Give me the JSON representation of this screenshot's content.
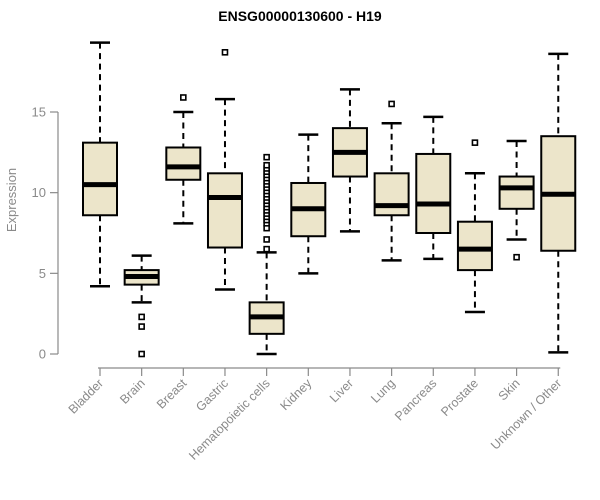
{
  "chart_data": {
    "type": "boxplot",
    "title": "ENSG00000130600 - H19",
    "ylabel": "Expression",
    "xlabel": "",
    "y_ticks": [
      0,
      5,
      10,
      15
    ],
    "ylim": [
      -0.9,
      19.8
    ],
    "grid": false,
    "legend": false,
    "colors": {
      "box_fill": "#ECE5CA",
      "box_border": "#000000",
      "median": "#000000",
      "whisker": "#000000",
      "axis": "#8a8a8a",
      "tick_label": "#8a8a8a",
      "title": "#000000",
      "background": "#ffffff"
    },
    "categories": [
      "Bladder",
      "Brain",
      "Breast",
      "Gastric",
      "Hematopoietic cells",
      "Kidney",
      "Liver",
      "Lung",
      "Pancreas",
      "Prostate",
      "Skin",
      "Unknown / Other"
    ],
    "series": [
      {
        "category": "Bladder",
        "whisker_low": 4.2,
        "q1": 8.6,
        "median": 10.5,
        "q3": 13.1,
        "whisker_high": 19.3,
        "outliers": []
      },
      {
        "category": "Brain",
        "whisker_low": 3.2,
        "q1": 4.3,
        "median": 4.8,
        "q3": 5.2,
        "whisker_high": 6.1,
        "outliers": [
          2.3,
          1.7,
          0.0
        ]
      },
      {
        "category": "Breast",
        "whisker_low": 8.1,
        "q1": 10.8,
        "median": 11.6,
        "q3": 12.8,
        "whisker_high": 15.0,
        "outliers": [
          15.9
        ]
      },
      {
        "category": "Gastric",
        "whisker_low": 4.0,
        "q1": 6.6,
        "median": 9.7,
        "q3": 11.2,
        "whisker_high": 15.8,
        "outliers": [
          18.7
        ]
      },
      {
        "category": "Hematopoietic cells",
        "whisker_low": 0.0,
        "q1": 1.25,
        "median": 2.3,
        "q3": 3.2,
        "whisker_high": 6.3,
        "outliers": [
          6.5,
          7.1,
          7.8,
          8.1,
          8.3,
          8.5,
          8.7,
          8.9,
          9.1,
          9.3,
          9.5,
          9.7,
          9.9,
          10.1,
          10.3,
          10.5,
          10.7,
          10.9,
          11.1,
          11.3,
          11.5,
          11.7,
          12.2
        ]
      },
      {
        "category": "Kidney",
        "whisker_low": 5.0,
        "q1": 7.3,
        "median": 9.0,
        "q3": 10.6,
        "whisker_high": 13.6,
        "outliers": []
      },
      {
        "category": "Liver",
        "whisker_low": 7.6,
        "q1": 11.0,
        "median": 12.5,
        "q3": 14.0,
        "whisker_high": 16.4,
        "outliers": []
      },
      {
        "category": "Lung",
        "whisker_low": 5.8,
        "q1": 8.6,
        "median": 9.2,
        "q3": 11.2,
        "whisker_high": 14.3,
        "outliers": [
          15.5
        ]
      },
      {
        "category": "Pancreas",
        "whisker_low": 5.9,
        "q1": 7.5,
        "median": 9.3,
        "q3": 12.4,
        "whisker_high": 14.7,
        "outliers": []
      },
      {
        "category": "Prostate",
        "whisker_low": 2.6,
        "q1": 5.2,
        "median": 6.5,
        "q3": 8.2,
        "whisker_high": 11.2,
        "outliers": [
          13.1
        ]
      },
      {
        "category": "Skin",
        "whisker_low": 7.1,
        "q1": 9.0,
        "median": 10.3,
        "q3": 11.0,
        "whisker_high": 13.2,
        "outliers": [
          6.0
        ]
      },
      {
        "category": "Unknown / Other",
        "whisker_low": 0.1,
        "q1": 6.4,
        "median": 9.9,
        "q3": 13.5,
        "whisker_high": 18.6,
        "outliers": []
      }
    ]
  }
}
